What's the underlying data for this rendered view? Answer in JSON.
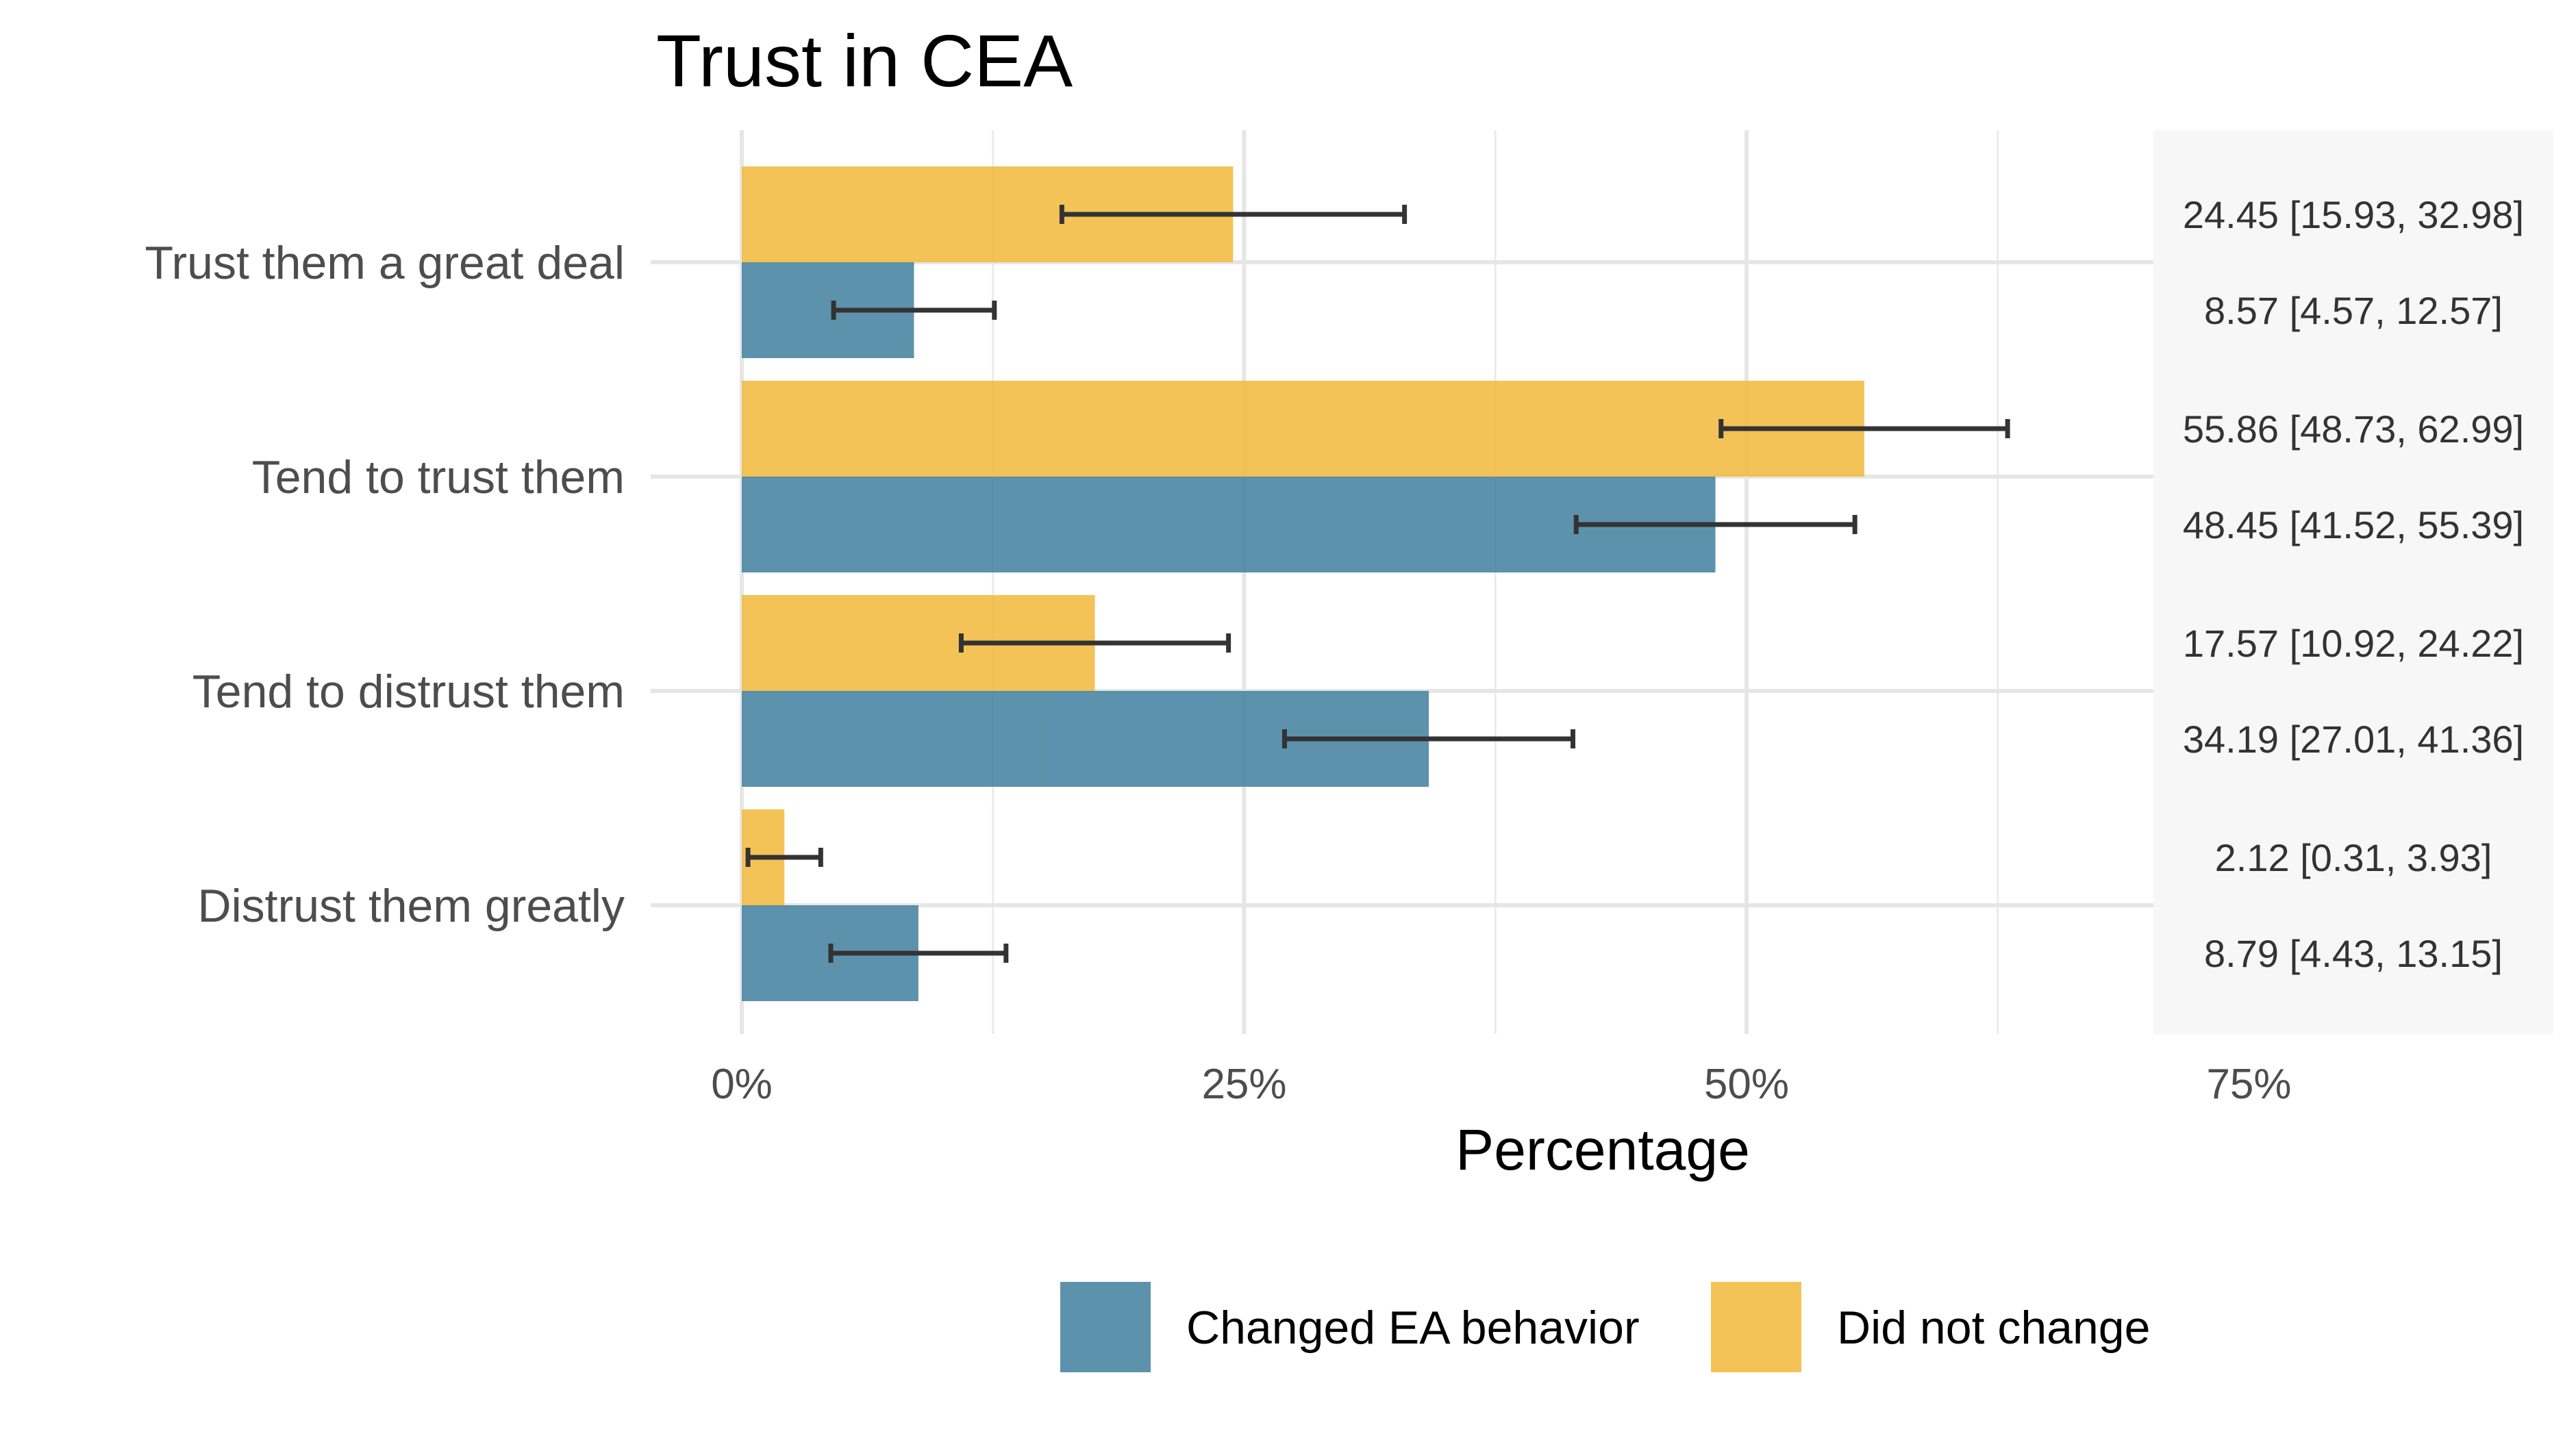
{
  "chart_data": {
    "type": "bar",
    "orientation": "horizontal",
    "title": "Trust in CEA",
    "xlabel": "Percentage",
    "ylabel": "",
    "xlim": [
      0,
      75
    ],
    "x_ticks": [
      "0%",
      "25%",
      "50%",
      "75%"
    ],
    "x_tick_values": [
      0,
      25,
      50,
      75
    ],
    "grid": true,
    "legend_position": "bottom",
    "categories": [
      "Trust them a great deal",
      "Tend to trust them",
      "Tend to distrust them",
      "Distrust them greatly"
    ],
    "series": [
      {
        "name": "Did not change",
        "color": "#f2b93b",
        "values": [
          24.45,
          55.86,
          17.57,
          2.12
        ],
        "ci_low": [
          15.93,
          48.73,
          10.92,
          0.31
        ],
        "ci_high": [
          32.98,
          62.99,
          24.22,
          3.93
        ],
        "labels": [
          "24.45 [15.93, 32.98]",
          "55.86 [48.73, 62.99]",
          "17.57 [10.92, 24.22]",
          "2.12 [0.31, 3.93]"
        ]
      },
      {
        "name": "Changed EA behavior",
        "color": "#3f7f9e",
        "values": [
          8.57,
          48.45,
          34.19,
          8.79
        ],
        "ci_low": [
          4.57,
          41.52,
          27.01,
          4.43
        ],
        "ci_high": [
          12.57,
          55.39,
          41.36,
          13.15
        ],
        "labels": [
          "8.57 [4.57, 12.57]",
          "48.45 [41.52, 55.39]",
          "34.19 [27.01, 41.36]",
          "8.79 [4.43, 13.15]"
        ]
      }
    ],
    "legend_order": [
      "Changed EA behavior",
      "Did not change"
    ]
  }
}
